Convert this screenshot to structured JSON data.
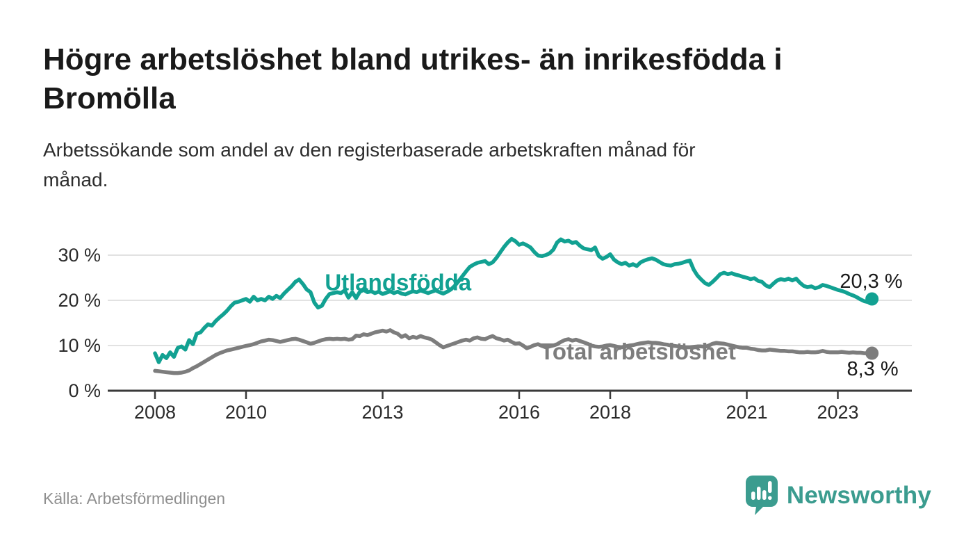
{
  "header": {
    "title": "Högre arbetslöshet bland utrikes- än inrikesfödda i Bromölla",
    "title_lines": [
      "Högre arbetslöshet bland utrikes- än inrikesfödda i",
      "Bromölla"
    ],
    "subtitle": "Arbetssökande som andel av den registerbaserade arbetskraften månad för månad.",
    "subtitle_lines": [
      "Arbetssökande som andel av den registerbaserade arbetskraften månad för",
      "månad."
    ]
  },
  "footer": {
    "source": "Källa: Arbetsförmedlingen",
    "brand": "Newsworthy"
  },
  "colors": {
    "title": "#1a1a1a",
    "subtitle": "#2d2d2d",
    "source": "#8f8f8f",
    "brand_teal": "#3b9c8f",
    "series_teal": "#12a192",
    "series_gray": "#7d7d7d",
    "gridline": "#d9d9d9",
    "axis": "#3a3a3a",
    "tick_label": "#2b2b2b",
    "value_label": "#1a1a1a"
  },
  "chart_data": {
    "type": "line",
    "title": "Högre arbetslöshet bland utrikes- än inrikesfödda i Bromölla",
    "xlabel": "",
    "ylabel": "Arbetssökande som andel av den registerbaserade arbetskraften",
    "unit": "%",
    "grid": true,
    "x_axis": {
      "ticks": [
        2008,
        2010,
        2013,
        2016,
        2018,
        2021,
        2023
      ],
      "tick_labels": [
        "2008",
        "2010",
        "2013",
        "2016",
        "2018",
        "2021",
        "2023"
      ]
    },
    "y_axis": {
      "ticks": [
        0,
        10,
        20,
        30
      ],
      "tick_labels": [
        "0 %",
        "10 %",
        "20 %",
        "30 %"
      ],
      "range": [
        0,
        34.8
      ]
    },
    "series": [
      {
        "name": "Utlandsfödda",
        "color": "#12a192",
        "start_year": 2008.0,
        "points_per_year": 12,
        "end_label": "20,3 %",
        "end_value": 20.3,
        "name_label_at": {
          "year": 2011.73,
          "value": 22.2,
          "anchor": "start"
        },
        "end_label_offset": {
          "dx": 44,
          "dy": -16,
          "anchor": "end"
        },
        "values": [
          8.3,
          6.3,
          7.9,
          7.2,
          8.5,
          7.5,
          9.5,
          9.8,
          9.1,
          11.2,
          10.3,
          12.6,
          12.9,
          13.9,
          14.7,
          14.4,
          15.4,
          16.2,
          16.9,
          17.7,
          18.7,
          19.5,
          19.7,
          20.0,
          20.3,
          19.7,
          20.8,
          20.0,
          20.3,
          20.0,
          20.8,
          20.3,
          21.0,
          20.5,
          21.5,
          22.3,
          23.1,
          24.1,
          24.6,
          23.6,
          22.4,
          21.8,
          19.5,
          18.4,
          18.8,
          20.3,
          21.4,
          21.6,
          21.8,
          21.6,
          22.2,
          20.6,
          21.8,
          20.5,
          21.9,
          22.3,
          21.8,
          22.0,
          21.6,
          21.9,
          21.4,
          21.7,
          22.0,
          21.6,
          21.9,
          21.5,
          21.3,
          21.7,
          22.0,
          21.8,
          22.2,
          21.9,
          21.6,
          21.9,
          22.2,
          21.8,
          21.5,
          21.9,
          22.4,
          23.2,
          24.2,
          25.3,
          26.4,
          27.4,
          27.9,
          28.3,
          28.5,
          28.7,
          28.0,
          28.4,
          29.4,
          30.6,
          31.8,
          32.8,
          33.6,
          33.1,
          32.3,
          32.6,
          32.2,
          31.7,
          30.7,
          29.9,
          29.8,
          30.0,
          30.4,
          31.2,
          32.8,
          33.5,
          33.0,
          33.2,
          32.7,
          32.9,
          32.1,
          31.5,
          31.3,
          31.1,
          31.7,
          29.8,
          29.2,
          29.6,
          30.2,
          29.0,
          28.4,
          28.0,
          28.3,
          27.7,
          28.0,
          27.6,
          28.4,
          28.8,
          29.1,
          29.3,
          29.0,
          28.5,
          28.0,
          27.8,
          27.7,
          28.0,
          28.1,
          28.3,
          28.6,
          28.8,
          26.8,
          25.5,
          24.6,
          23.8,
          23.4,
          24.1,
          24.9,
          25.8,
          26.1,
          25.8,
          26.0,
          25.7,
          25.5,
          25.2,
          25.0,
          24.7,
          24.9,
          24.3,
          24.1,
          23.3,
          22.9,
          23.7,
          24.4,
          24.7,
          24.5,
          24.8,
          24.4,
          24.8,
          23.9,
          23.2,
          22.9,
          23.1,
          22.7,
          22.9,
          23.4,
          23.2,
          22.9,
          22.6,
          22.3,
          22.1,
          21.8,
          21.4,
          21.1,
          20.7,
          20.2,
          19.8,
          19.6,
          20.3
        ]
      },
      {
        "name": "Total arbetslöshet",
        "color": "#7d7d7d",
        "start_year": 2008.0,
        "points_per_year": 12,
        "end_label": "8,3 %",
        "end_value": 8.3,
        "name_label_at": {
          "year": 2016.46,
          "value": 6.9,
          "anchor": "start"
        },
        "end_label_offset": {
          "dx": 38,
          "dy": 32,
          "anchor": "end"
        },
        "values": [
          4.4,
          4.3,
          4.2,
          4.1,
          4.0,
          3.9,
          3.9,
          4.0,
          4.2,
          4.5,
          5.0,
          5.4,
          5.9,
          6.4,
          6.9,
          7.4,
          7.9,
          8.3,
          8.6,
          8.9,
          9.1,
          9.3,
          9.5,
          9.7,
          9.9,
          10.1,
          10.3,
          10.6,
          10.9,
          11.1,
          11.3,
          11.2,
          11.0,
          10.8,
          11.0,
          11.2,
          11.4,
          11.5,
          11.3,
          11.0,
          10.7,
          10.4,
          10.6,
          10.9,
          11.2,
          11.4,
          11.5,
          11.4,
          11.5,
          11.4,
          11.5,
          11.3,
          11.4,
          12.2,
          12.1,
          12.5,
          12.3,
          12.6,
          12.9,
          13.1,
          13.3,
          13.1,
          13.4,
          12.9,
          12.6,
          11.9,
          12.3,
          11.6,
          11.9,
          11.7,
          12.1,
          11.8,
          11.6,
          11.3,
          10.7,
          10.1,
          9.6,
          9.9,
          10.2,
          10.5,
          10.8,
          11.1,
          11.3,
          11.1,
          11.6,
          11.8,
          11.5,
          11.4,
          11.8,
          12.1,
          11.6,
          11.4,
          11.1,
          11.3,
          10.8,
          10.4,
          10.5,
          10.0,
          9.4,
          9.7,
          10.1,
          10.3,
          9.9,
          9.6,
          9.8,
          10.0,
          10.3,
          10.8,
          11.2,
          11.4,
          11.1,
          11.3,
          11.0,
          10.7,
          10.4,
          10.0,
          9.8,
          9.7,
          9.8,
          10.0,
          10.1,
          9.9,
          9.7,
          9.6,
          9.8,
          10.0,
          10.1,
          10.3,
          10.5,
          10.6,
          10.7,
          10.6,
          10.6,
          10.5,
          10.3,
          10.2,
          10.0,
          9.9,
          9.8,
          9.7,
          9.6,
          9.6,
          9.7,
          9.8,
          9.8,
          9.7,
          10.0,
          10.4,
          10.6,
          10.5,
          10.4,
          10.2,
          10.0,
          9.8,
          9.6,
          9.5,
          9.5,
          9.3,
          9.2,
          9.0,
          8.9,
          8.9,
          9.1,
          9.0,
          8.9,
          8.8,
          8.8,
          8.7,
          8.7,
          8.6,
          8.5,
          8.5,
          8.6,
          8.5,
          8.5,
          8.6,
          8.8,
          8.6,
          8.5,
          8.5,
          8.5,
          8.6,
          8.5,
          8.4,
          8.5,
          8.4,
          8.4,
          8.3,
          8.3,
          8.3
        ]
      }
    ]
  }
}
